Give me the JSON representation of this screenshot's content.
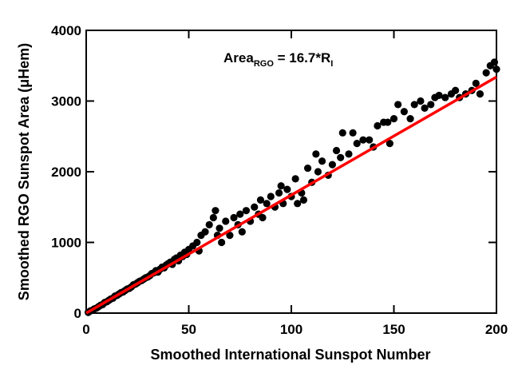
{
  "chart_data": {
    "type": "scatter",
    "annotation": {
      "main": "Area",
      "sub": "RGO",
      "rest": " = 16.7*R",
      "sub2": "I"
    },
    "x_label": "Smoothed International Sunspot Number",
    "y_label": "Smoothed RGO Sunspot Area (μHem)",
    "xlim": [
      0,
      200
    ],
    "xticks": [
      0,
      50,
      100,
      150,
      200
    ],
    "ylim": [
      0,
      4000
    ],
    "yticks": [
      0,
      1000,
      2000,
      3000,
      4000
    ],
    "series": [
      {
        "color": "#000000",
        "x": [
          1,
          2,
          3,
          4,
          5,
          6,
          7,
          8,
          9,
          10,
          11,
          12,
          13,
          14,
          15,
          16,
          17,
          18,
          19,
          20,
          21,
          22,
          23,
          24,
          25,
          26,
          27,
          28,
          29,
          30,
          31,
          32,
          33,
          34,
          35,
          36,
          37,
          38,
          39,
          40,
          41,
          42,
          43,
          44,
          45,
          46,
          47,
          48,
          49,
          50,
          52,
          54,
          55,
          56,
          58,
          60,
          62,
          63,
          64,
          65,
          66,
          68,
          70,
          72,
          74,
          75,
          76,
          78,
          80,
          82,
          84,
          85,
          86,
          88,
          90,
          92,
          94,
          95,
          96,
          98,
          100,
          102,
          103,
          105,
          106,
          108,
          110,
          112,
          113,
          115,
          118,
          120,
          122,
          124,
          125,
          128,
          130,
          132,
          135,
          138,
          140,
          142,
          145,
          147,
          148,
          150,
          152,
          155,
          158,
          160,
          163,
          165,
          168,
          170,
          172,
          175,
          178,
          180,
          182,
          185,
          188,
          190,
          192,
          195,
          197,
          199,
          200
        ],
        "values": [
          10,
          30,
          40,
          60,
          70,
          90,
          110,
          120,
          150,
          160,
          180,
          200,
          210,
          240,
          250,
          270,
          290,
          300,
          320,
          340,
          350,
          370,
          400,
          410,
          430,
          450,
          460,
          480,
          500,
          510,
          530,
          560,
          570,
          600,
          580,
          620,
          650,
          640,
          680,
          700,
          720,
          690,
          760,
          780,
          740,
          820,
          800,
          860,
          830,
          900,
          950,
          1000,
          880,
          1100,
          1150,
          1250,
          1350,
          1450,
          1100,
          1200,
          1000,
          1300,
          1100,
          1350,
          1250,
          1400,
          1150,
          1450,
          1300,
          1500,
          1400,
          1600,
          1350,
          1550,
          1650,
          1500,
          1700,
          1800,
          1550,
          1750,
          1650,
          1900,
          1550,
          1700,
          1600,
          2050,
          1850,
          2250,
          2000,
          2150,
          1950,
          2100,
          2300,
          2200,
          2550,
          2250,
          2550,
          2400,
          2450,
          2450,
          2350,
          2650,
          2700,
          2700,
          2400,
          2750,
          2950,
          2850,
          2750,
          2950,
          3000,
          2900,
          2950,
          3050,
          3080,
          3050,
          3100,
          3150,
          3050,
          3100,
          3150,
          3250,
          3100,
          3400,
          3500,
          3550,
          3450
        ]
      },
      {
        "type": "line",
        "color": "#ff0000",
        "x": [
          0,
          200
        ],
        "values": [
          0,
          3340
        ]
      }
    ]
  }
}
